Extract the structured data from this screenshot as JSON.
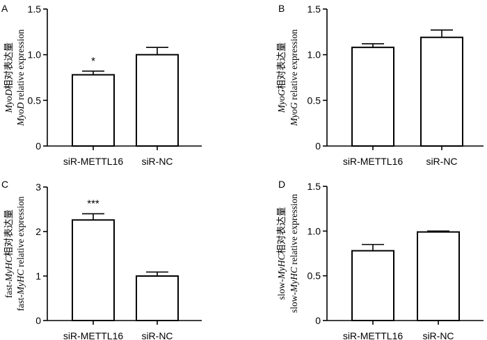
{
  "chart_data": [
    {
      "panel": "A",
      "type": "bar",
      "categories": [
        "siR-METTL16",
        "siR-NC"
      ],
      "values": [
        0.78,
        1.0
      ],
      "errors": [
        0.04,
        0.08
      ],
      "significance": [
        "*",
        ""
      ],
      "ylim": [
        0,
        1.5
      ],
      "yticks": [
        "0",
        "0.5",
        "1.0",
        "1.5"
      ],
      "ylabel_line1": {
        "italic": "MyoD",
        "rest": "相对表达量"
      },
      "ylabel_line2": {
        "italic": "MyoD",
        "rest": " relative expression"
      }
    },
    {
      "panel": "B",
      "type": "bar",
      "categories": [
        "siR-METTL16",
        "siR-NC"
      ],
      "values": [
        1.08,
        1.19
      ],
      "errors": [
        0.04,
        0.08
      ],
      "significance": [
        "",
        ""
      ],
      "ylim": [
        0,
        1.5
      ],
      "yticks": [
        "0",
        "0.5",
        "1.0",
        "1.5"
      ],
      "ylabel_line1": {
        "italic": "MyoG",
        "rest": "相对表达量"
      },
      "ylabel_line2": {
        "italic": "MyoG",
        "rest": " relative expression"
      }
    },
    {
      "panel": "C",
      "type": "bar",
      "categories": [
        "siR-METTL16",
        "siR-NC"
      ],
      "values": [
        2.26,
        1.0
      ],
      "errors": [
        0.14,
        0.09
      ],
      "significance": [
        "***",
        ""
      ],
      "ylim": [
        0,
        3
      ],
      "yticks": [
        "0",
        "1",
        "2",
        "3"
      ],
      "ylabel_line1": {
        "prefix": "fast-",
        "italic": "MyHC",
        "rest": "相对表达量"
      },
      "ylabel_line2": {
        "prefix": "fast-",
        "italic": "MyHC",
        "rest": " relative expression"
      }
    },
    {
      "panel": "D",
      "type": "bar",
      "categories": [
        "siR-METTL16",
        "siR-NC"
      ],
      "values": [
        0.78,
        0.99
      ],
      "errors": [
        0.07,
        0.01
      ],
      "significance": [
        "",
        ""
      ],
      "ylim": [
        0,
        1.5
      ],
      "yticks": [
        "0",
        "0.5",
        "1.0",
        "1.5"
      ],
      "ylabel_line1": {
        "prefix": "slow-",
        "italic": "MyHC",
        "rest": "相对表达量"
      },
      "ylabel_line2": {
        "prefix": "slow-",
        "italic": "MyHC",
        "rest": " relative expression"
      }
    }
  ]
}
